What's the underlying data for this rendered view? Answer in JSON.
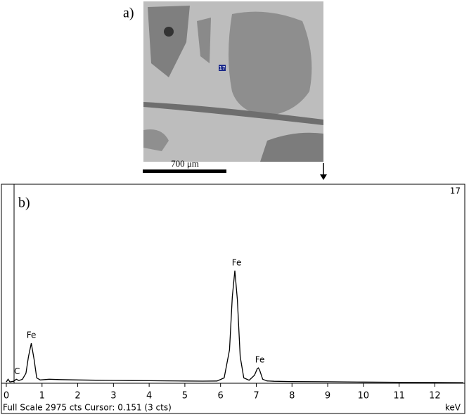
{
  "panel_a": {
    "label": "a)",
    "scale_bar": "700 μm",
    "marker": "17"
  },
  "chart_data": {
    "type": "line",
    "title": "b)",
    "spectrum_id": "17",
    "x_unit": "keV",
    "status": "Full Scale 2975 cts Cursor: 0.151  (3 cts)",
    "color": "#000000",
    "xlim": [
      0,
      12.8
    ],
    "ylim": [
      0,
      2975
    ],
    "xticks": [
      0,
      1,
      2,
      3,
      4,
      5,
      6,
      7,
      8,
      9,
      10,
      11,
      12
    ],
    "x": [
      0,
      0.05,
      0.1,
      0.2,
      0.28,
      0.35,
      0.45,
      0.55,
      0.62,
      0.7,
      0.78,
      0.85,
      0.95,
      1.2,
      1.5,
      2,
      2.5,
      3,
      3.5,
      4,
      4.5,
      5,
      5.5,
      5.9,
      6.1,
      6.25,
      6.33,
      6.4,
      6.47,
      6.55,
      6.65,
      6.8,
      6.95,
      7.03,
      7.06,
      7.1,
      7.18,
      7.3,
      7.5,
      8,
      9,
      10,
      11,
      12,
      12.8
    ],
    "values": [
      20,
      60,
      20,
      30,
      60,
      40,
      60,
      150,
      400,
      600,
      350,
      80,
      50,
      60,
      55,
      50,
      45,
      42,
      40,
      38,
      36,
      34,
      32,
      34,
      80,
      500,
      1300,
      1690,
      1250,
      400,
      80,
      45,
      120,
      220,
      230,
      190,
      60,
      35,
      30,
      25,
      22,
      18,
      15,
      12,
      10
    ],
    "annotations": [
      {
        "text": "C",
        "x": 0.3,
        "y": 60
      },
      {
        "text": "Fe",
        "x": 0.7,
        "y": 600
      },
      {
        "text": "Fe",
        "x": 6.45,
        "y": 1690
      },
      {
        "text": "Fe",
        "x": 7.1,
        "y": 230
      }
    ]
  }
}
